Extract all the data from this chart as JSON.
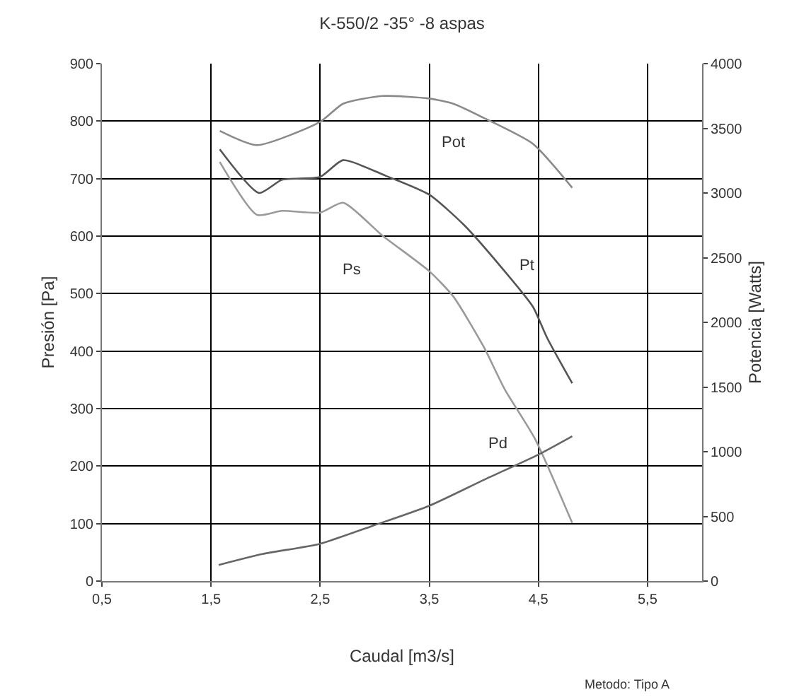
{
  "chart_data": {
    "type": "line",
    "title": "K-550/2 -35° -8 aspas",
    "xlabel": "Caudal [m3/s]",
    "ylabel": "Presión [Pa]",
    "y2label": "Potencia [Watts]",
    "xlim": [
      0.5,
      6.0
    ],
    "xticks": [
      {
        "value": 0.5,
        "label": "0,5"
      },
      {
        "value": 1.5,
        "label": "1,5"
      },
      {
        "value": 2.5,
        "label": "2,5"
      },
      {
        "value": 3.5,
        "label": "3,5"
      },
      {
        "value": 4.5,
        "label": "4,5"
      },
      {
        "value": 5.5,
        "label": "5,5"
      }
    ],
    "ylim": [
      0,
      900
    ],
    "yticks": [
      0,
      100,
      200,
      300,
      400,
      500,
      600,
      700,
      800,
      900
    ],
    "y2lim": [
      0,
      4000
    ],
    "y2ticks": [
      0,
      500,
      1000,
      1500,
      2000,
      2500,
      3000,
      3500,
      4000
    ],
    "grid": true,
    "legend": false,
    "marker": "none",
    "line_style": "solid",
    "series": [
      {
        "name": "Pot",
        "color": "#8a8a8a",
        "axis": "y2",
        "x": [
          1.58,
          1.92,
          2.5,
          2.71,
          3.07,
          3.5,
          3.72,
          4.0,
          4.45,
          4.81
        ],
        "values": [
          3480,
          3370,
          3550,
          3690,
          3750,
          3730,
          3690,
          3580,
          3380,
          3040
        ]
      },
      {
        "name": "Pt",
        "color": "#555555",
        "x": [
          1.58,
          1.94,
          2.15,
          2.5,
          2.71,
          3.1,
          3.5,
          3.82,
          4.19,
          4.45,
          4.58,
          4.81
        ],
        "values": [
          751,
          675,
          698,
          703,
          732,
          705,
          672,
          619,
          539,
          477,
          423,
          344
        ]
      },
      {
        "name": "Ps",
        "color": "#9a9a9a",
        "x": [
          1.58,
          1.92,
          2.15,
          2.5,
          2.71,
          3.07,
          3.5,
          3.72,
          4.0,
          4.19,
          4.47,
          4.81
        ],
        "values": [
          729,
          637,
          644,
          641,
          658,
          601,
          539,
          495,
          407,
          334,
          247,
          101
        ]
      },
      {
        "name": "Pd",
        "color": "#666666",
        "x": [
          1.57,
          1.97,
          2.5,
          2.98,
          3.5,
          4.0,
          4.5,
          4.81
        ],
        "values": [
          28,
          47,
          65,
          96,
          131,
          176,
          220,
          252
        ]
      }
    ],
    "annotations": [
      "Metodo: Tipo A"
    ]
  }
}
